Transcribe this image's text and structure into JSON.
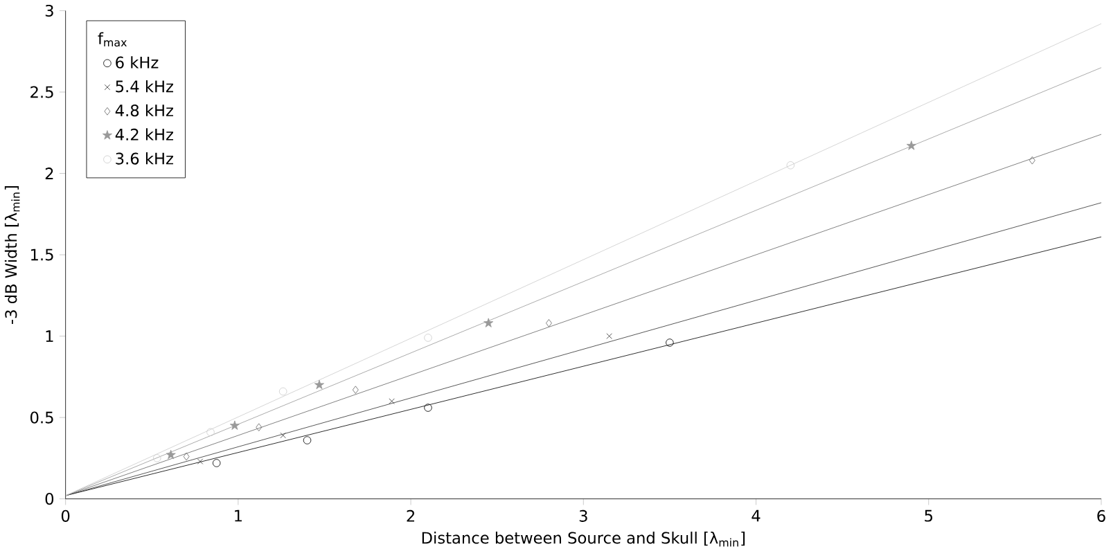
{
  "chart_data": {
    "type": "scatter",
    "xlabel": "Distance between Source and Skull [λ$_{min}$]",
    "ylabel": "-3 dB Width [λ$_{min}$]",
    "legend_title": "f$_{max}$",
    "legend": "top left",
    "grid": false,
    "xlim": [
      0,
      6
    ],
    "ylim": [
      0,
      3
    ],
    "xticks": [
      0,
      1,
      2,
      3,
      4,
      5,
      6
    ],
    "yticks": [
      0,
      0.5,
      1,
      1.5,
      2,
      2.5,
      3
    ],
    "series": [
      {
        "name": "6 kHz",
        "color": "#000000",
        "marker": "circle",
        "x": [
          0.875,
          1.4,
          2.1,
          3.5
        ],
        "values": [
          0.22,
          0.36,
          0.56,
          0.96
        ]
      },
      {
        "name": "5.4 kHz",
        "color": "#333333",
        "marker": "cross",
        "x": [
          0.78,
          1.26,
          1.89,
          3.15
        ],
        "values": [
          0.23,
          0.39,
          0.6,
          1.0
        ]
      },
      {
        "name": "4.8 kHz",
        "color": "#666666",
        "marker": "diamond",
        "x": [
          0.7,
          1.12,
          1.68,
          2.8,
          5.6
        ],
        "values": [
          0.26,
          0.44,
          0.67,
          1.08,
          2.08
        ]
      },
      {
        "name": "4.2 kHz",
        "color": "#999999",
        "marker": "star",
        "x": [
          0.61,
          0.98,
          1.47,
          2.45,
          4.9
        ],
        "values": [
          0.27,
          0.45,
          0.7,
          1.08,
          2.17
        ]
      },
      {
        "name": "3.6 kHz",
        "color": "#cccccc",
        "marker": "circle",
        "x": [
          0.53,
          0.84,
          1.26,
          2.1,
          4.2
        ],
        "values": [
          0.25,
          0.41,
          0.66,
          0.99,
          2.05
        ]
      },
      {
        "type": "line",
        "color": "#000000",
        "x": [
          0,
          6
        ],
        "values": [
          0.02,
          1.61
        ]
      },
      {
        "type": "line",
        "color": "#333333",
        "x": [
          0,
          6
        ],
        "values": [
          0.02,
          1.82
        ]
      },
      {
        "type": "line",
        "color": "#666666",
        "x": [
          0,
          6
        ],
        "values": [
          0.02,
          2.24
        ]
      },
      {
        "type": "line",
        "color": "#999999",
        "x": [
          0,
          6
        ],
        "values": [
          0.02,
          2.65
        ]
      },
      {
        "type": "line",
        "color": "#cccccc",
        "x": [
          0,
          6
        ],
        "values": [
          0.02,
          2.92
        ]
      }
    ]
  }
}
